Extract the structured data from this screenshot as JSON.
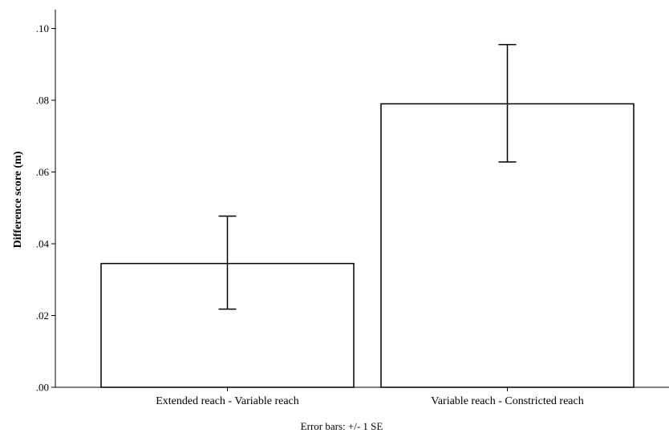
{
  "chart_data": {
    "type": "bar",
    "categories": [
      "Extended reach - Variable reach",
      "Variable reach - Constricted reach"
    ],
    "values": [
      0.0345,
      0.079
    ],
    "error_bars": {
      "lower": [
        0.0218,
        0.0628
      ],
      "upper": [
        0.0477,
        0.0955
      ]
    },
    "ylabel": "Difference score (m)",
    "xlabel": "",
    "ylim": [
      0,
      0.105
    ],
    "yticks": [
      0.0,
      0.02,
      0.04,
      0.06,
      0.08,
      0.1
    ],
    "ytick_labels": [
      ".00",
      ".02",
      ".04",
      ".06",
      ".08",
      ".10"
    ],
    "footnote": "Error bars: +/- 1 SE",
    "grid": false,
    "bar_fill": "#ffffff",
    "bar_stroke": "#000000"
  }
}
